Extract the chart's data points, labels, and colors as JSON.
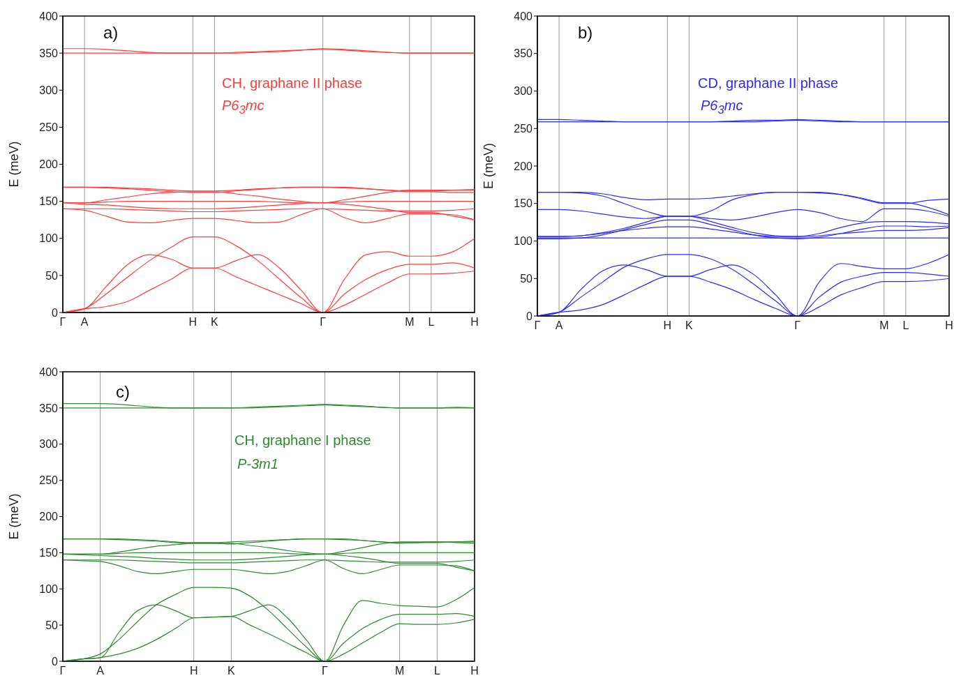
{
  "chart_data": [
    {
      "type": "line",
      "title": "a)",
      "ylabel": "E  (meV)",
      "annotations": [
        "CH, graphane II phase",
        "P6$_{3}$mc"
      ],
      "grid": "x",
      "ylim": [
        0,
        400
      ],
      "categories": [
        "Γ",
        "A",
        null,
        null,
        null,
        null,
        "H",
        "K",
        null,
        null,
        null,
        null,
        "Γ",
        null,
        null,
        null,
        "M",
        "L",
        null,
        "H"
      ],
      "yticks": [
        0,
        50,
        100,
        150,
        200,
        250,
        300,
        350,
        400
      ],
      "series": [
        {
          "color": "#ff3b3b",
          "values": [
            0,
            5,
            8,
            15,
            30,
            45,
            60,
            60,
            48,
            36,
            24,
            12,
            0,
            10,
            25,
            40,
            52,
            52,
            53,
            56
          ]
        },
        {
          "color": "#ff3b3b",
          "values": [
            0,
            5,
            25,
            48,
            70,
            88,
            102,
            102,
            90,
            70,
            45,
            20,
            0,
            25,
            45,
            58,
            65,
            65,
            67,
            60
          ]
        },
        {
          "color": "#ff3b3b",
          "values": [
            0,
            5,
            35,
            65,
            78,
            72,
            60,
            60,
            70,
            78,
            60,
            30,
            0,
            45,
            78,
            82,
            76,
            76,
            82,
            100
          ]
        },
        {
          "color": "#ff3b3b",
          "values": [
            140,
            140,
            140,
            139,
            138,
            137,
            136,
            136,
            137,
            138,
            139,
            140,
            140,
            139,
            138,
            137,
            137,
            137,
            138,
            140
          ]
        },
        {
          "color": "#ff3b3b",
          "values": [
            148,
            148,
            149,
            150,
            150,
            150,
            150,
            150,
            150,
            150,
            149,
            148,
            148,
            149,
            150,
            150,
            150,
            150,
            150,
            150
          ]
        },
        {
          "color": "#ff3b3b",
          "values": [
            148,
            148,
            152,
            156,
            160,
            162,
            163,
            163,
            160,
            157,
            153,
            150,
            148,
            152,
            157,
            162,
            165,
            165,
            165,
            165
          ]
        },
        {
          "color": "#ff3b3b",
          "values": [
            148,
            146,
            145,
            143,
            141,
            140,
            140,
            140,
            141,
            143,
            145,
            147,
            148,
            146,
            143,
            139,
            135,
            135,
            130,
            125
          ]
        },
        {
          "color": "#ff3b3b",
          "values": [
            140,
            138,
            130,
            122,
            121,
            124,
            127,
            127,
            124,
            121,
            122,
            132,
            140,
            128,
            121,
            127,
            133,
            133,
            132,
            125
          ]
        },
        {
          "color": "#ff3b3b",
          "values": [
            169,
            169,
            168,
            167,
            165,
            163,
            162,
            162,
            164,
            166,
            168,
            169,
            169,
            169,
            167,
            165,
            163,
            163,
            162,
            162
          ]
        },
        {
          "color": "#ff3b3b",
          "values": [
            169,
            169,
            169,
            168,
            167,
            165,
            164,
            164,
            165,
            167,
            168,
            169,
            169,
            168,
            167,
            165,
            164,
            164,
            165,
            166
          ]
        },
        {
          "color": "#ff3b3b",
          "values": [
            356,
            356,
            355,
            353,
            351,
            350,
            350,
            350,
            350,
            351,
            352,
            354,
            356,
            355,
            353,
            351,
            350,
            350,
            350,
            350
          ]
        },
        {
          "color": "#ff3b3b",
          "values": [
            350,
            350,
            350,
            350,
            350,
            350,
            350,
            350,
            351,
            352,
            353,
            354,
            355,
            354,
            352,
            351,
            350,
            350,
            350,
            350
          ]
        }
      ]
    },
    {
      "type": "line",
      "title": "b)",
      "ylabel": "E  (meV)",
      "annotations": [
        "CD, graphane II phase",
        "P6$_{3}$mc"
      ],
      "grid": "x",
      "ylim": [
        0,
        400
      ],
      "categories": [
        "Γ",
        "A",
        null,
        null,
        null,
        null,
        "H",
        "K",
        null,
        null,
        null,
        null,
        "Γ",
        null,
        null,
        null,
        "M",
        "L",
        null,
        "H"
      ],
      "yticks": [
        0,
        50,
        100,
        150,
        200,
        250,
        300,
        350,
        400
      ],
      "series": [
        {
          "color": "#2b2bff",
          "values": [
            0,
            5,
            8,
            15,
            28,
            42,
            53,
            53,
            45,
            35,
            22,
            10,
            0,
            12,
            28,
            38,
            46,
            46,
            47,
            50
          ]
        },
        {
          "color": "#2b2bff",
          "values": [
            0,
            5,
            25,
            45,
            65,
            76,
            82,
            82,
            76,
            62,
            42,
            20,
            0,
            25,
            45,
            53,
            58,
            58,
            56,
            53
          ]
        },
        {
          "color": "#2b2bff",
          "values": [
            0,
            5,
            35,
            60,
            68,
            62,
            53,
            53,
            62,
            68,
            55,
            28,
            0,
            45,
            70,
            66,
            63,
            63,
            70,
            82
          ]
        },
        {
          "color": "#2b2bff",
          "values": [
            104,
            104,
            104,
            104,
            104,
            104,
            104,
            104,
            104,
            104,
            104,
            104,
            104,
            104,
            104,
            104,
            104,
            104,
            104,
            104
          ]
        },
        {
          "color": "#2b2bff",
          "values": [
            106,
            106,
            107,
            110,
            114,
            117,
            119,
            119,
            116,
            112,
            108,
            106,
            106,
            107,
            110,
            112,
            114,
            114,
            115,
            118
          ]
        },
        {
          "color": "#2b2bff",
          "values": [
            103,
            103,
            104,
            108,
            115,
            122,
            128,
            128,
            122,
            115,
            108,
            104,
            103,
            105,
            110,
            116,
            120,
            120,
            119,
            120
          ]
        },
        {
          "color": "#2b2bff",
          "values": [
            106,
            106,
            107,
            111,
            117,
            125,
            133,
            133,
            126,
            118,
            111,
            107,
            106,
            110,
            118,
            124,
            126,
            126,
            125,
            123
          ]
        },
        {
          "color": "#2b2bff",
          "values": [
            142,
            142,
            140,
            136,
            132,
            130,
            133,
            133,
            130,
            128,
            132,
            138,
            142,
            138,
            130,
            126,
            143,
            143,
            140,
            133
          ]
        },
        {
          "color": "#2b2bff",
          "values": [
            165,
            165,
            165,
            163,
            158,
            155,
            156,
            156,
            157,
            160,
            163,
            165,
            165,
            165,
            162,
            156,
            150,
            150,
            154,
            156
          ]
        },
        {
          "color": "#2b2bff",
          "values": [
            165,
            165,
            164,
            160,
            150,
            140,
            133,
            133,
            140,
            155,
            162,
            165,
            165,
            164,
            162,
            157,
            151,
            151,
            145,
            135
          ]
        },
        {
          "color": "#2b2bff",
          "values": [
            262,
            262,
            261,
            260,
            259,
            259,
            259,
            259,
            259,
            260,
            261,
            261,
            262,
            261,
            260,
            259,
            259,
            259,
            259,
            259
          ]
        },
        {
          "color": "#2b2bff",
          "values": [
            259,
            259,
            259,
            259,
            259,
            259,
            259,
            259,
            259,
            259,
            259,
            260,
            261,
            260,
            259,
            259,
            259,
            259,
            259,
            259
          ]
        }
      ]
    },
    {
      "type": "line",
      "title": "c)",
      "ylabel": "E  (meV)",
      "annotations": [
        "CH, graphane I phase",
        "P-3m1"
      ],
      "grid": "x",
      "ylim": [
        0,
        400
      ],
      "categories": [
        "Γ",
        null,
        "A",
        null,
        null,
        null,
        null,
        "H",
        null,
        "K",
        null,
        null,
        null,
        null,
        "Γ",
        null,
        null,
        null,
        "M",
        null,
        "L",
        null,
        "H"
      ],
      "yticks": [
        0,
        50,
        100,
        150,
        200,
        250,
        300,
        350,
        400
      ],
      "series": [
        {
          "color": "#2e8b2e",
          "values": [
            0,
            3,
            5,
            10,
            18,
            30,
            45,
            60,
            61,
            62,
            50,
            38,
            25,
            12,
            0,
            10,
            25,
            40,
            52,
            51,
            51,
            53,
            58
          ]
        },
        {
          "color": "#2e8b2e",
          "values": [
            0,
            3,
            10,
            30,
            55,
            78,
            92,
            102,
            102,
            101,
            90,
            70,
            45,
            20,
            0,
            25,
            45,
            58,
            65,
            65,
            65,
            66,
            62
          ]
        },
        {
          "color": "#2e8b2e",
          "values": [
            0,
            3,
            5,
            40,
            70,
            78,
            70,
            60,
            61,
            62,
            70,
            78,
            60,
            30,
            0,
            50,
            84,
            80,
            77,
            76,
            75,
            85,
            102
          ]
        },
        {
          "color": "#2e8b2e",
          "values": [
            140,
            140,
            140,
            140,
            139,
            138,
            137,
            136,
            136,
            136,
            137,
            138,
            139,
            140,
            140,
            139,
            138,
            137,
            137,
            137,
            137,
            138,
            140
          ]
        },
        {
          "color": "#2e8b2e",
          "values": [
            148,
            148,
            148,
            149,
            150,
            150,
            150,
            150,
            150,
            150,
            150,
            150,
            149,
            148,
            148,
            149,
            150,
            150,
            150,
            150,
            150,
            150,
            150
          ]
        },
        {
          "color": "#2e8b2e",
          "values": [
            148,
            148,
            148,
            151,
            155,
            159,
            161,
            163,
            163,
            163,
            160,
            157,
            153,
            150,
            148,
            152,
            157,
            162,
            165,
            165,
            165,
            165,
            165
          ]
        },
        {
          "color": "#2e8b2e",
          "values": [
            148,
            147,
            146,
            145,
            144,
            142,
            141,
            140,
            140,
            140,
            141,
            143,
            145,
            147,
            148,
            146,
            143,
            139,
            135,
            135,
            135,
            130,
            125
          ]
        },
        {
          "color": "#2e8b2e",
          "values": [
            140,
            139,
            138,
            132,
            124,
            121,
            124,
            127,
            127,
            127,
            124,
            121,
            124,
            132,
            140,
            128,
            121,
            127,
            133,
            133,
            133,
            132,
            125
          ]
        },
        {
          "color": "#2e8b2e",
          "values": [
            169,
            169,
            169,
            168,
            167,
            166,
            164,
            163,
            163,
            162,
            164,
            166,
            168,
            169,
            169,
            169,
            167,
            165,
            163,
            164,
            165,
            164,
            163
          ]
        },
        {
          "color": "#2e8b2e",
          "values": [
            169,
            169,
            169,
            169,
            168,
            167,
            165,
            164,
            164,
            165,
            166,
            167,
            168,
            169,
            169,
            168,
            167,
            165,
            164,
            164,
            164,
            165,
            166
          ]
        },
        {
          "color": "#2e8b2e",
          "values": [
            356,
            356,
            356,
            355,
            353,
            351,
            350,
            350,
            350,
            350,
            351,
            352,
            353,
            354,
            355,
            354,
            353,
            351,
            350,
            350,
            350,
            351,
            350
          ]
        },
        {
          "color": "#2e8b2e",
          "values": [
            350,
            350,
            350,
            350,
            350,
            350,
            350,
            350,
            350,
            350,
            350,
            351,
            352,
            353,
            354,
            353,
            352,
            351,
            350,
            350,
            350,
            350,
            350
          ]
        }
      ]
    }
  ]
}
